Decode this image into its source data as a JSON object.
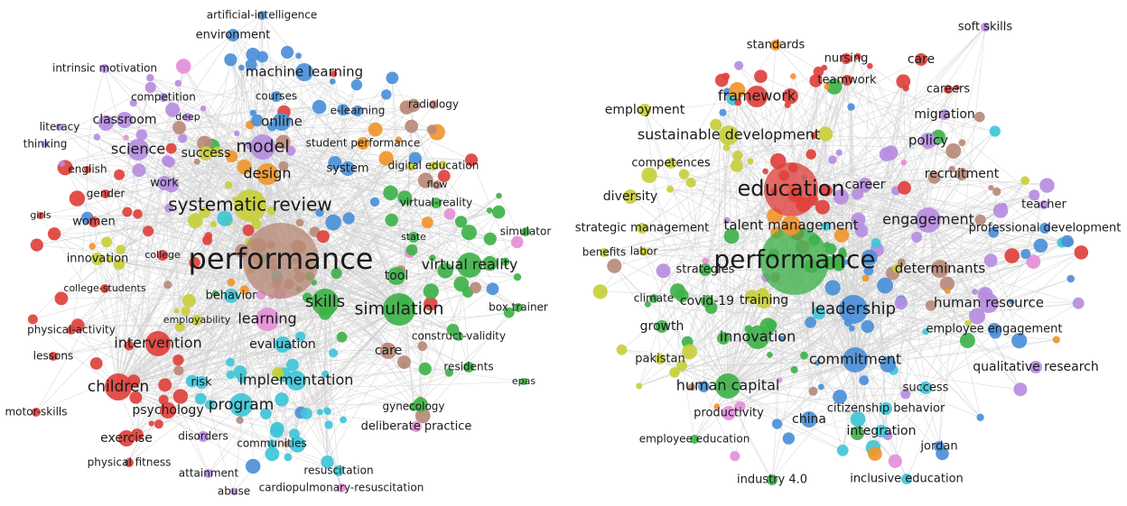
{
  "colors": {
    "red": "#e0413c",
    "green": "#3fb24a",
    "blue": "#4b90d8",
    "yellow": "#c8cf3c",
    "purple": "#b68de0",
    "cyan": "#3fc6d8",
    "orange": "#f0962c",
    "brown": "#b88a78",
    "pink": "#e58fd8"
  },
  "left_map": {
    "labels": [
      "artificial-intelligence",
      "environment",
      "machine learning",
      "intrinsic motivation",
      "competition",
      "courses",
      "radiology",
      "classroom",
      "deep",
      "online",
      "e-learning",
      "literacy",
      "thinking",
      "science",
      "model",
      "student performance",
      "success",
      "digital education",
      "english",
      "design",
      "system",
      "flow",
      "work",
      "gender",
      "systematic review",
      "virtual-reality",
      "girls",
      "women",
      "simulator",
      "state",
      "innovation",
      "college",
      "performance",
      "virtual reality",
      "college-students",
      "tool",
      "behavior",
      "skills",
      "box trainer",
      "simulation",
      "employability",
      "learning",
      "physical-activity",
      "construct-validity",
      "intervention",
      "evaluation",
      "lessons",
      "care",
      "residents",
      "epas",
      "children",
      "risk",
      "implementation",
      "gynecology",
      "program",
      "motor-skills",
      "psychology",
      "deliberate practice",
      "exercise",
      "disorders",
      "communities",
      "physical fitness",
      "attainment",
      "resuscitation",
      "abuse",
      "cardiopulmonary-resuscitation"
    ]
  },
  "right_map": {
    "labels": [
      "soft skills",
      "standards",
      "nursing",
      "care",
      "teamwork",
      "careers",
      "framework",
      "employment",
      "migration",
      "sustainable development",
      "policy",
      "competences",
      "recruitment",
      "education",
      "career",
      "diversity",
      "teacher",
      "engagement",
      "talent management",
      "strategic management",
      "professional development",
      "benefits",
      "labor",
      "performance",
      "determinants",
      "strategies",
      "climate",
      "covid-19",
      "training",
      "human resource",
      "leadership",
      "growth",
      "employee engagement",
      "innovation",
      "pakistan",
      "commitment",
      "qualitative research",
      "human capital",
      "success",
      "citizenship behavior",
      "productivity",
      "china",
      "integration",
      "jordan",
      "employee education",
      "industry 4.0",
      "inclusive education"
    ]
  }
}
